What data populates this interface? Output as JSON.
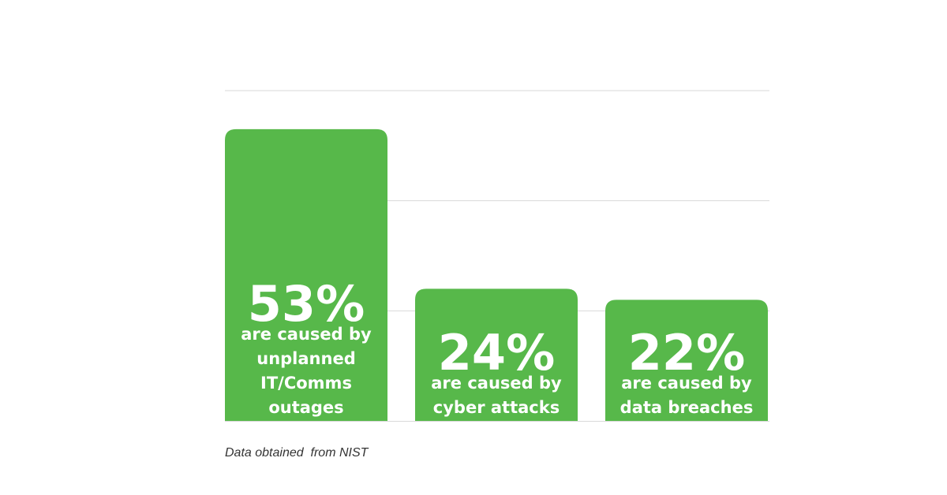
{
  "chart_data": {
    "type": "bar",
    "categories": [
      "unplanned IT/Comms outages",
      "cyber attacks",
      "data breaches"
    ],
    "values": [
      53,
      24,
      22
    ],
    "value_labels": [
      "53%",
      "24%",
      "22%"
    ],
    "bar_descriptions": [
      [
        "are caused by",
        "unplanned",
        "IT/Comms",
        "outages"
      ],
      [
        "are caused by",
        "cyber attacks"
      ],
      [
        "are caused by",
        "data breaches"
      ]
    ],
    "unit": "%",
    "ylim": [
      0,
      60
    ],
    "gridlines": [
      20,
      40,
      60
    ],
    "grid": true,
    "bar_color": "#57b84a",
    "gridline_color": "#d9d9d9",
    "label_color": "#ffffff"
  },
  "footnote": "Data obtained  from NIST"
}
